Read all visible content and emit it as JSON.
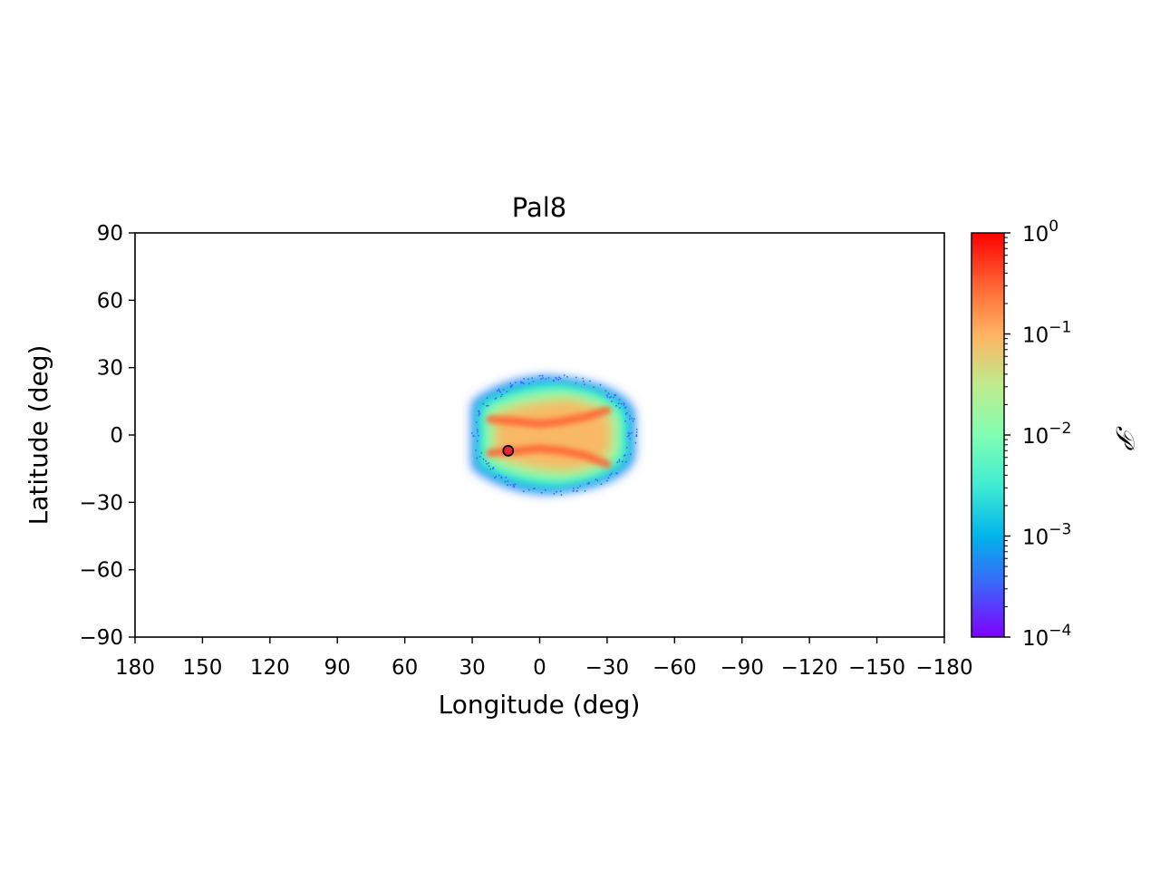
{
  "chart_data": {
    "type": "heatmap",
    "title": "Pal8",
    "xlabel": "Longitude (deg)",
    "ylabel": "Latitude (deg)",
    "xlim": [
      180,
      -180
    ],
    "ylim": [
      -90,
      90
    ],
    "x_ticks": [
      180,
      150,
      120,
      90,
      60,
      30,
      0,
      -30,
      -60,
      -90,
      -120,
      -150,
      -180
    ],
    "x_tick_labels": [
      "180",
      "150",
      "120",
      "90",
      "60",
      "30",
      "0",
      "−30",
      "−60",
      "−90",
      "−120",
      "−150",
      "−180"
    ],
    "y_ticks": [
      90,
      60,
      30,
      0,
      -30,
      -60,
      -90
    ],
    "y_tick_labels": [
      "90",
      "60",
      "30",
      "0",
      "−30",
      "−60",
      "−90"
    ],
    "grid": false,
    "density_region": {
      "lon_range": [
        30,
        -42
      ],
      "lat_range": [
        -26,
        26
      ],
      "peak_value": 0.3,
      "edge_value": 0.0003
    },
    "streams": [
      {
        "lon": [
          22,
          10,
          0,
          -10,
          -20,
          -30
        ],
        "lat": [
          7,
          6,
          5,
          6,
          8,
          11
        ]
      },
      {
        "lon": [
          22,
          10,
          0,
          -10,
          -20,
          -30
        ],
        "lat": [
          -8,
          -7,
          -6,
          -7,
          -9,
          -13
        ]
      }
    ],
    "cluster_marker": {
      "lon": 14,
      "lat": -7,
      "color": "#e8262b"
    },
    "colorbar": {
      "label": "𝒫",
      "scale": "log",
      "range": [
        0.0001,
        1
      ],
      "ticks": [
        1,
        0.1,
        0.01,
        0.001,
        0.0001
      ],
      "tick_bases": [
        "10",
        "10",
        "10",
        "10",
        "10"
      ],
      "tick_exponents": [
        "0",
        "−1",
        "−2",
        "−3",
        "−4"
      ],
      "colormap": [
        "#7f00ff",
        "#3f61fa",
        "#00b4eb",
        "#40ecd3",
        "#80feb3",
        "#c0eb8d",
        "#ffb360",
        "#ff6131",
        "#ff0000"
      ]
    }
  }
}
